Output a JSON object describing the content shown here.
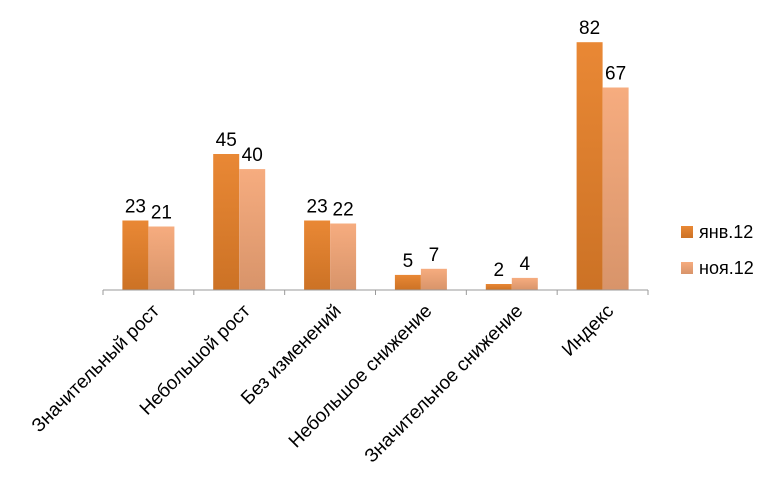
{
  "chart_data": {
    "type": "bar",
    "categories": [
      "Значительный рост",
      "Небольшой рост",
      "Без изменений",
      "Небольшое снижение",
      "Значительное снижение",
      "Индекс"
    ],
    "series": [
      {
        "name": "янв.12",
        "values": [
          23,
          45,
          23,
          5,
          2,
          82
        ],
        "color": "#E8822A"
      },
      {
        "name": "ноя.12",
        "values": [
          21,
          40,
          22,
          7,
          4,
          67
        ],
        "color": "#F5A878"
      }
    ],
    "ylim": [
      0,
      90
    ],
    "grid": false,
    "legend_position": "right",
    "data_labels": true,
    "x_tick_rotation": -45
  }
}
